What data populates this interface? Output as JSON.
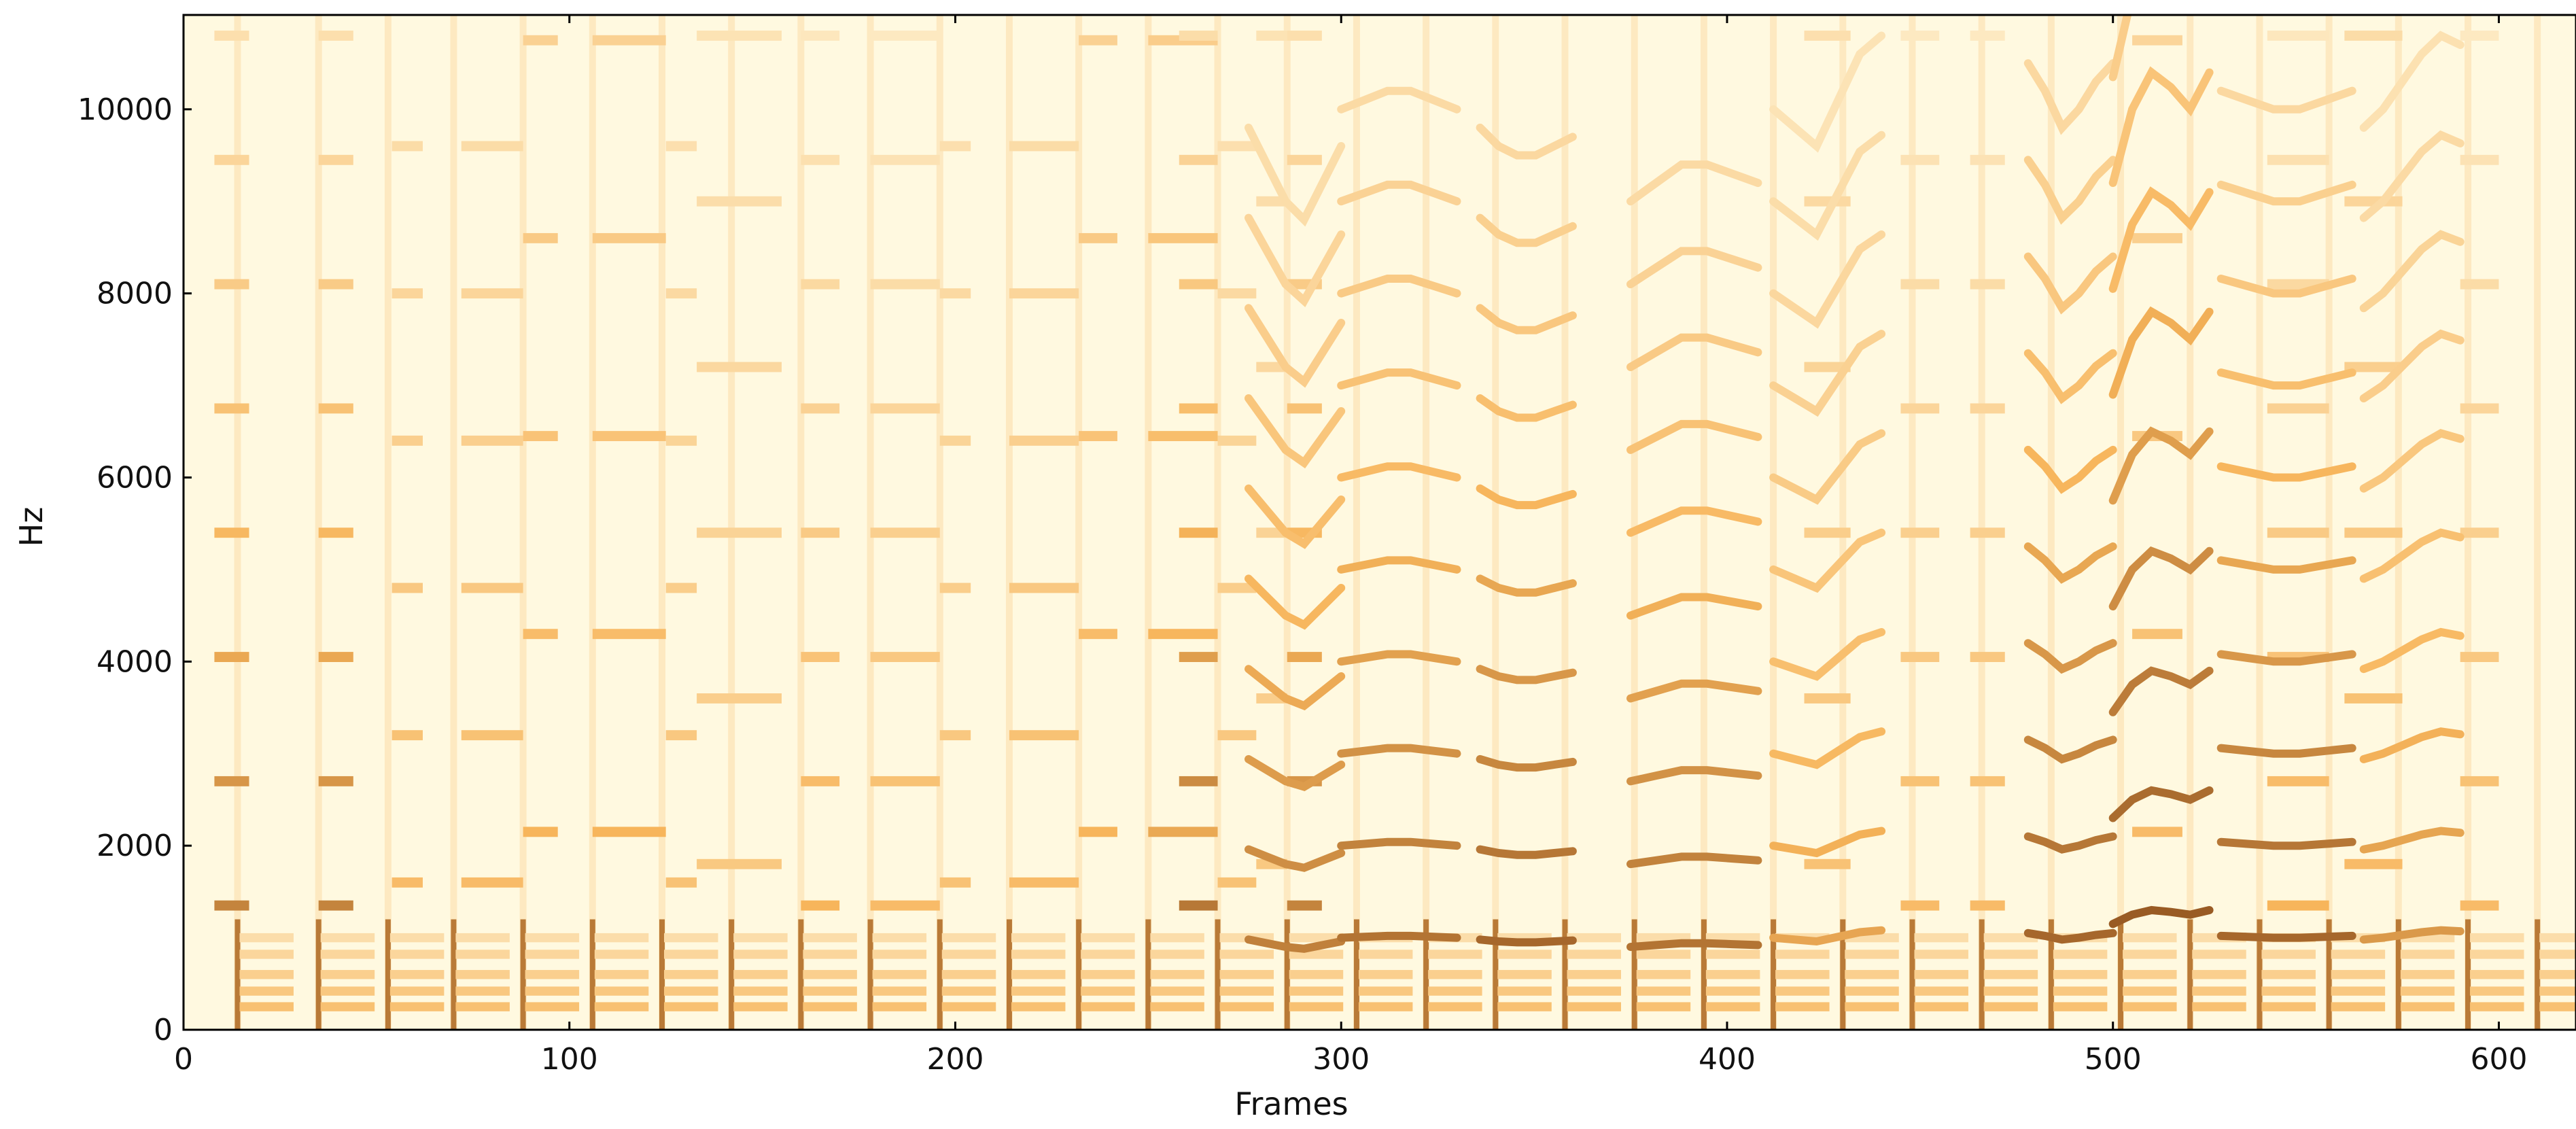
{
  "chart_data": {
    "type": "heatmap",
    "title": "",
    "xlabel": "Frames",
    "ylabel": "Hz",
    "xlim": [
      0,
      620
    ],
    "ylim": [
      0,
      11025
    ],
    "x_ticks": [
      0,
      100,
      200,
      300,
      400,
      500,
      600
    ],
    "y_ticks": [
      0,
      2000,
      4000,
      6000,
      8000,
      10000
    ],
    "x_tick_labels": [
      "0",
      "100",
      "200",
      "300",
      "400",
      "500",
      "600"
    ],
    "y_tick_labels": [
      "0",
      "2000",
      "4000",
      "6000",
      "8000",
      "10000"
    ],
    "grid": false,
    "legend": "none",
    "colormap": {
      "name": "YlOrBr",
      "low": "#fffde8",
      "mid": "#f7b55b",
      "high": "#6b2f0a"
    },
    "content_description": "spectrogram of audio frames; left section (frames 0-275) shows piano-like notes with harmonic stacks, right section (frames 275-620) shows voiced speech/singing with curved formants",
    "note_onsets": [
      14,
      35,
      53,
      70,
      88,
      106,
      124,
      142,
      160,
      178,
      196,
      214,
      232,
      250,
      268,
      286,
      304,
      322,
      340,
      358,
      376,
      394,
      412,
      430,
      448,
      466,
      484,
      502,
      520,
      538,
      556,
      574,
      592,
      610
    ],
    "tone_segments": [
      {
        "x0": 8,
        "x1": 17,
        "f0": 1350,
        "strength": 0.75
      },
      {
        "x0": 35,
        "x1": 44,
        "f0": 1350,
        "strength": 0.75
      },
      {
        "x0": 54,
        "x1": 62,
        "f0": 1600,
        "strength": 0.5
      },
      {
        "x0": 72,
        "x1": 88,
        "f0": 1600,
        "strength": 0.5
      },
      {
        "x0": 88,
        "x1": 97,
        "f0": 2150,
        "strength": 0.55
      },
      {
        "x0": 106,
        "x1": 125,
        "f0": 2150,
        "strength": 0.55
      },
      {
        "x0": 125,
        "x1": 133,
        "f0": 1600,
        "strength": 0.45
      },
      {
        "x0": 133,
        "x1": 155,
        "f0": 1800,
        "strength": 0.4
      },
      {
        "x0": 160,
        "x1": 170,
        "f0": 1350,
        "strength": 0.55
      },
      {
        "x0": 178,
        "x1": 196,
        "f0": 1350,
        "strength": 0.5
      },
      {
        "x0": 196,
        "x1": 204,
        "f0": 1600,
        "strength": 0.45
      },
      {
        "x0": 214,
        "x1": 232,
        "f0": 1600,
        "strength": 0.5
      },
      {
        "x0": 232,
        "x1": 242,
        "f0": 2150,
        "strength": 0.55
      },
      {
        "x0": 250,
        "x1": 268,
        "f0": 2150,
        "strength": 0.6
      },
      {
        "x0": 258,
        "x1": 268,
        "f0": 1350,
        "strength": 0.8
      },
      {
        "x0": 268,
        "x1": 278,
        "f0": 1600,
        "strength": 0.45
      },
      {
        "x0": 278,
        "x1": 286,
        "f0": 1800,
        "strength": 0.4
      },
      {
        "x0": 286,
        "x1": 295,
        "f0": 1350,
        "strength": 0.75
      },
      {
        "x0": 420,
        "x1": 432,
        "f0": 1800,
        "strength": 0.45
      },
      {
        "x0": 445,
        "x1": 455,
        "f0": 1350,
        "strength": 0.5
      },
      {
        "x0": 463,
        "x1": 472,
        "f0": 1350,
        "strength": 0.5
      },
      {
        "x0": 505,
        "x1": 518,
        "f0": 2150,
        "strength": 0.5
      },
      {
        "x0": 540,
        "x1": 556,
        "f0": 1350,
        "strength": 0.55
      },
      {
        "x0": 560,
        "x1": 575,
        "f0": 1800,
        "strength": 0.5
      },
      {
        "x0": 590,
        "x1": 600,
        "f0": 1350,
        "strength": 0.5
      }
    ],
    "speech_segments": [
      {
        "x0": 276,
        "x1": 300,
        "f0": [
          980,
          940,
          900,
          880,
          920,
          960
        ],
        "strength": 0.75
      },
      {
        "x0": 300,
        "x1": 330,
        "f0": [
          1000,
          1010,
          1020,
          1020,
          1010,
          1000
        ],
        "strength": 0.8
      },
      {
        "x0": 336,
        "x1": 360,
        "f0": [
          980,
          960,
          950,
          950,
          960,
          970
        ],
        "strength": 0.85
      },
      {
        "x0": 375,
        "x1": 408,
        "f0": [
          900,
          920,
          940,
          940,
          930,
          920
        ],
        "strength": 0.8
      },
      {
        "x0": 412,
        "x1": 440,
        "f0": [
          1000,
          980,
          960,
          1010,
          1060,
          1080
        ],
        "strength": 0.6
      },
      {
        "x0": 478,
        "x1": 500,
        "f0": [
          1050,
          1020,
          980,
          1000,
          1030,
          1050
        ],
        "strength": 0.85
      },
      {
        "x0": 500,
        "x1": 525,
        "f0": [
          1150,
          1250,
          1300,
          1280,
          1250,
          1300
        ],
        "strength": 0.9
      },
      {
        "x0": 528,
        "x1": 562,
        "f0": [
          1020,
          1010,
          1000,
          1000,
          1010,
          1020
        ],
        "strength": 0.85
      },
      {
        "x0": 565,
        "x1": 590,
        "f0": [
          980,
          1000,
          1030,
          1060,
          1080,
          1070
        ],
        "strength": 0.65
      }
    ]
  }
}
